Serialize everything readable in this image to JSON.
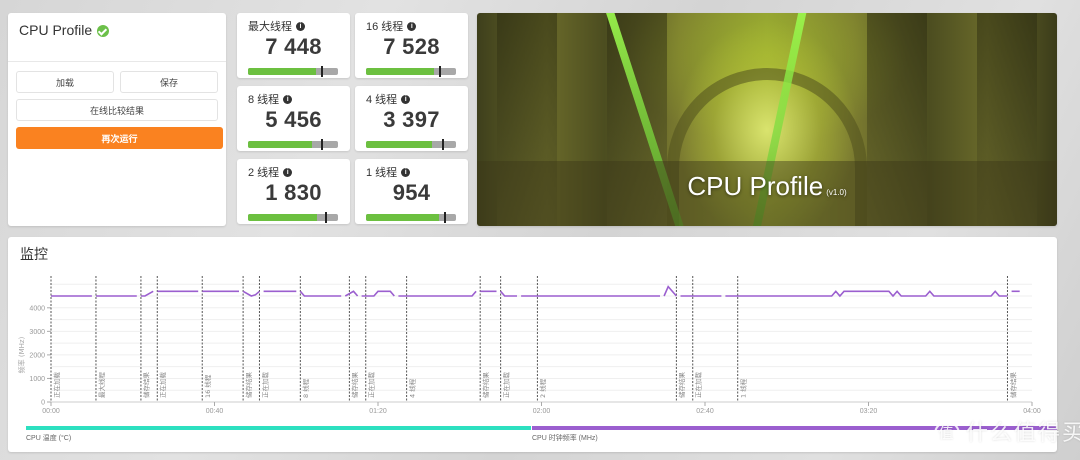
{
  "control": {
    "title": "CPU Profile",
    "status_icon": "check-circle-icon",
    "load_label": "加载",
    "save_label": "保存",
    "compare_label": "在线比较结果",
    "run_again_label": "再次运行"
  },
  "scores": [
    {
      "label": "最大线程",
      "value": "7 448",
      "fill_pct": 76,
      "marker_pct": 81
    },
    {
      "label": "16 线程",
      "value": "7 528",
      "fill_pct": 76,
      "marker_pct": 81
    },
    {
      "label": "8 线程",
      "value": "5 456",
      "fill_pct": 71,
      "marker_pct": 81
    },
    {
      "label": "4 线程",
      "value": "3 397",
      "fill_pct": 73,
      "marker_pct": 84
    },
    {
      "label": "2 线程",
      "value": "1 830",
      "fill_pct": 77,
      "marker_pct": 86
    },
    {
      "label": "1 线程",
      "value": "954",
      "fill_pct": 81,
      "marker_pct": 87
    }
  ],
  "banner": {
    "title": "CPU Profile",
    "version": "(v1.0)"
  },
  "monitor": {
    "heading": "监控",
    "legend": [
      {
        "label": "CPU 温度 (°C)",
        "color": "#2de0c0"
      },
      {
        "label": "CPU 时钟频率 (MHz)",
        "color": "#9b5fcf"
      }
    ],
    "watermark": "什么值得买",
    "watermark_icon": "值"
  },
  "chart_data": {
    "type": "line",
    "title": "监控",
    "xlabel": "",
    "ylabel": "频率 (MHz)",
    "xlim": [
      0,
      240
    ],
    "ylim": [
      0,
      5000
    ],
    "x_ticks": [
      "00:00",
      "00:40",
      "01:20",
      "02:00",
      "02:40",
      "03:20",
      "04:00"
    ],
    "y_ticks": [
      0,
      1000,
      2000,
      3000,
      4000
    ],
    "grid": true,
    "series": [
      {
        "name": "CPU 时钟频率 (MHz)",
        "color": "#9b5fcf",
        "segments": [
          [
            [
              0,
              4500
            ],
            [
              10,
              4500
            ]
          ],
          [
            [
              11,
              4500
            ],
            [
              21,
              4500
            ]
          ],
          [
            [
              22,
              4500
            ],
            [
              23,
              4500
            ],
            [
              25,
              4700
            ]
          ],
          [
            [
              26,
              4700
            ],
            [
              36,
              4700
            ]
          ],
          [
            [
              37,
              4700
            ],
            [
              46,
              4700
            ]
          ],
          [
            [
              47,
              4700
            ],
            [
              49,
              4500
            ],
            [
              50,
              4550
            ],
            [
              51,
              4700
            ]
          ],
          [
            [
              52,
              4700
            ],
            [
              60,
              4700
            ]
          ],
          [
            [
              61,
              4700
            ],
            [
              62,
              4500
            ],
            [
              71,
              4500
            ]
          ],
          [
            [
              72,
              4500
            ],
            [
              74,
              4700
            ],
            [
              75,
              4500
            ]
          ],
          [
            [
              76,
              4500
            ],
            [
              79,
              4500
            ],
            [
              80,
              4700
            ],
            [
              83,
              4700
            ],
            [
              84,
              4500
            ]
          ],
          [
            [
              85,
              4500
            ],
            [
              103,
              4500
            ],
            [
              104,
              4700
            ]
          ],
          [
            [
              105,
              4700
            ],
            [
              109,
              4700
            ]
          ],
          [
            [
              110,
              4700
            ],
            [
              111,
              4500
            ],
            [
              114,
              4500
            ]
          ],
          [
            [
              115,
              4500
            ],
            [
              149,
              4500
            ]
          ],
          [
            [
              150,
              4500
            ],
            [
              151,
              4900
            ],
            [
              153,
              4500
            ]
          ],
          [
            [
              154,
              4500
            ],
            [
              164,
              4500
            ]
          ],
          [
            [
              165,
              4500
            ],
            [
              191,
              4500
            ],
            [
              192,
              4700
            ],
            [
              193,
              4500
            ],
            [
              194,
              4700
            ],
            [
              205,
              4700
            ],
            [
              206,
              4500
            ],
            [
              207,
              4700
            ],
            [
              208,
              4500
            ],
            [
              214,
              4500
            ],
            [
              215,
              4700
            ],
            [
              216,
              4500
            ],
            [
              230,
              4500
            ],
            [
              231,
              4700
            ],
            [
              232,
              4500
            ],
            [
              234,
              4500
            ]
          ],
          [
            [
              235,
              4700
            ],
            [
              237,
              4700
            ]
          ]
        ]
      },
      {
        "name": "CPU 温度 (°C)",
        "color": "#2de0c0",
        "segments": []
      }
    ],
    "annotations": [
      {
        "x": 0,
        "label": "正在加载"
      },
      {
        "x": 11,
        "label": "最大线程"
      },
      {
        "x": 22,
        "label": "储存结果"
      },
      {
        "x": 26,
        "label": "正在加载"
      },
      {
        "x": 37,
        "label": "16 线程"
      },
      {
        "x": 47,
        "label": "储存结果"
      },
      {
        "x": 51,
        "label": "正在加载"
      },
      {
        "x": 61,
        "label": "8 线程"
      },
      {
        "x": 73,
        "label": "储存结果"
      },
      {
        "x": 77,
        "label": "正在加载"
      },
      {
        "x": 87,
        "label": "4 线程"
      },
      {
        "x": 105,
        "label": "储存结果"
      },
      {
        "x": 110,
        "label": "正在加载"
      },
      {
        "x": 119,
        "label": "2 线程"
      },
      {
        "x": 153,
        "label": "储存结果"
      },
      {
        "x": 157,
        "label": "正在加载"
      },
      {
        "x": 168,
        "label": "1 线程"
      },
      {
        "x": 234,
        "label": "储存结果"
      }
    ]
  }
}
